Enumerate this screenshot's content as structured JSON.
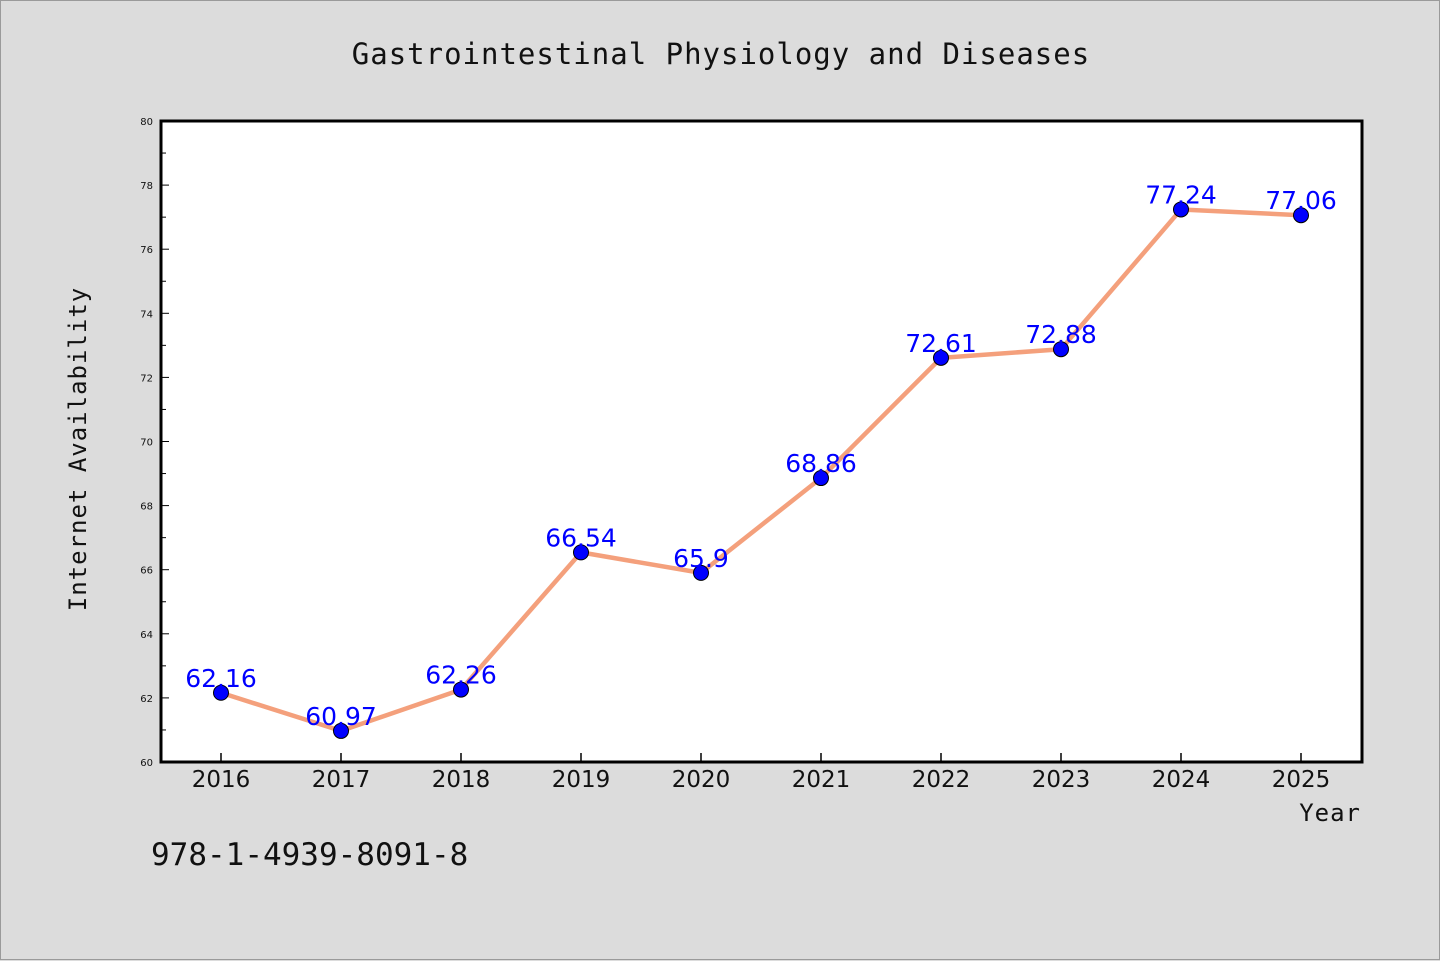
{
  "chart_data": {
    "type": "line",
    "title": "Gastrointestinal Physiology and Diseases",
    "xlabel": "Year",
    "ylabel": "Internet Availability",
    "categories": [
      "2016",
      "2017",
      "2018",
      "2019",
      "2020",
      "2021",
      "2022",
      "2023",
      "2024",
      "2025"
    ],
    "series": [
      {
        "values": [
          62.16,
          60.97,
          62.26,
          66.54,
          65.9,
          68.86,
          72.61,
          72.88,
          77.24,
          77.06
        ],
        "labels": [
          "62.16",
          "60.97",
          "62.26",
          "66.54",
          "65.9",
          "68.86",
          "72.61",
          "72.88",
          "77.24",
          "77.06"
        ],
        "line_color": "#f4a07c",
        "marker_color": "#0000ff"
      }
    ],
    "ylim": [
      60,
      80
    ],
    "yticks": [
      "60",
      "62",
      "64",
      "66",
      "68",
      "70",
      "72",
      "74",
      "76",
      "78",
      "80"
    ],
    "grid": false,
    "legend": "none"
  },
  "footer": {
    "isbn": "978-1-4939-8091-8"
  }
}
